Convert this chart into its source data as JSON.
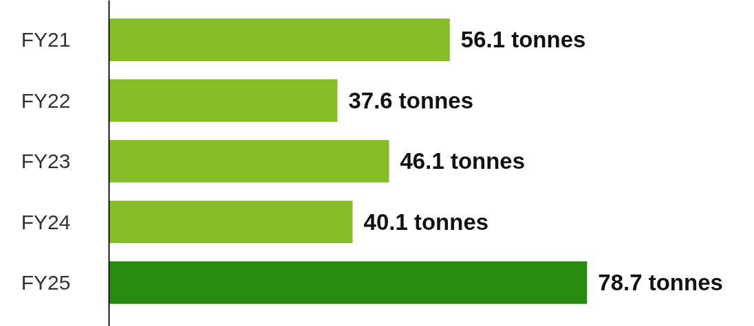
{
  "chart_data": {
    "type": "bar",
    "orientation": "horizontal",
    "categories": [
      "FY21",
      "FY22",
      "FY23",
      "FY24",
      "FY25"
    ],
    "values": [
      56.1,
      37.6,
      46.1,
      40.1,
      78.7
    ],
    "colors": [
      "#86bc25",
      "#86bc25",
      "#86bc25",
      "#86bc25",
      "#268b0f"
    ],
    "value_labels": [
      "56.1 tonnes",
      "37.6 tonnes",
      "46.1 tonnes",
      "40.1 tonnes",
      "78.7 tonnes"
    ],
    "grid": false,
    "tick_labels": "y"
  }
}
